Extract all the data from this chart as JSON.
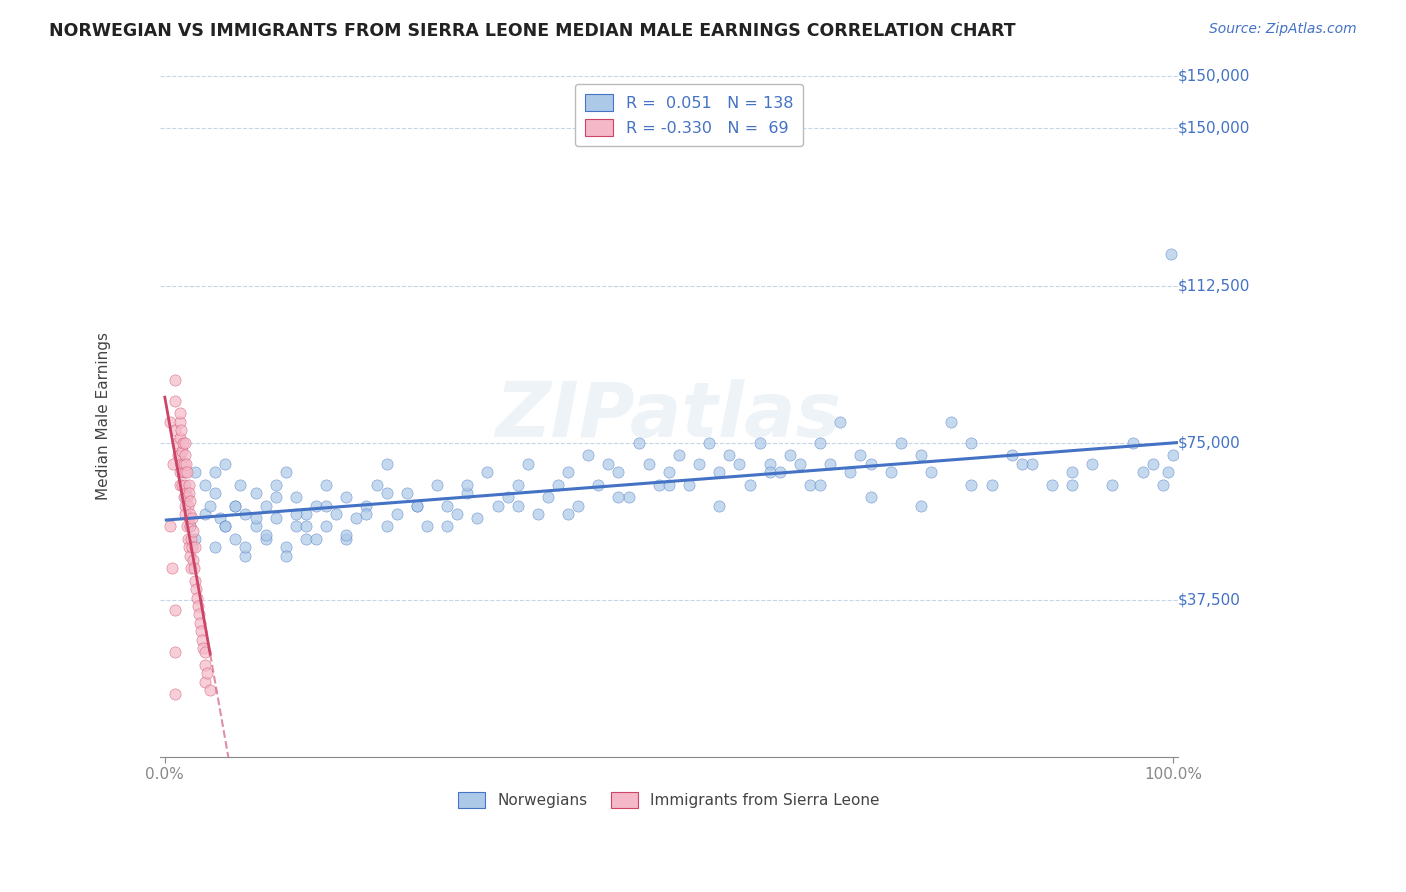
{
  "title": "NORWEGIAN VS IMMIGRANTS FROM SIERRA LEONE MEDIAN MALE EARNINGS CORRELATION CHART",
  "source": "Source: ZipAtlas.com",
  "ylabel": "Median Male Earnings",
  "ytick_labels": [
    "$37,500",
    "$75,000",
    "$112,500",
    "$150,000"
  ],
  "ytick_values": [
    37500,
    75000,
    112500,
    150000
  ],
  "ymin": 0,
  "ymax": 162500,
  "xmin": -0.005,
  "xmax": 1.005,
  "color_norwegian": "#adc9e8",
  "color_sierra_leone": "#f4b8c8",
  "color_norwegian_line": "#4472c4",
  "color_sierra_leone_line": "#cc4466",
  "color_axis_text": "#4472c4",
  "color_gridline": "#b8cce4",
  "color_trendline_nor": "#4472c4",
  "color_trendline_sl_solid": "#cc4466",
  "color_trendline_sl_dash": "#cc4466",
  "background_color": "#ffffff",
  "watermark": "ZIPatlas",
  "norwegians_x": [
    0.02,
    0.025,
    0.03,
    0.03,
    0.04,
    0.04,
    0.045,
    0.05,
    0.05,
    0.055,
    0.06,
    0.06,
    0.07,
    0.07,
    0.075,
    0.08,
    0.08,
    0.09,
    0.09,
    0.1,
    0.1,
    0.11,
    0.11,
    0.12,
    0.12,
    0.13,
    0.13,
    0.14,
    0.14,
    0.15,
    0.16,
    0.16,
    0.17,
    0.18,
    0.18,
    0.19,
    0.2,
    0.21,
    0.22,
    0.22,
    0.23,
    0.24,
    0.25,
    0.26,
    0.27,
    0.28,
    0.29,
    0.3,
    0.31,
    0.32,
    0.33,
    0.34,
    0.35,
    0.36,
    0.37,
    0.38,
    0.39,
    0.4,
    0.41,
    0.42,
    0.43,
    0.44,
    0.45,
    0.46,
    0.47,
    0.48,
    0.49,
    0.5,
    0.51,
    0.52,
    0.53,
    0.54,
    0.55,
    0.56,
    0.57,
    0.58,
    0.59,
    0.6,
    0.61,
    0.62,
    0.63,
    0.64,
    0.65,
    0.66,
    0.67,
    0.68,
    0.69,
    0.7,
    0.72,
    0.73,
    0.75,
    0.76,
    0.78,
    0.8,
    0.82,
    0.84,
    0.86,
    0.88,
    0.9,
    0.92,
    0.94,
    0.96,
    0.97,
    0.98,
    0.99,
    0.995,
    0.998,
    1.0,
    0.05,
    0.06,
    0.07,
    0.08,
    0.09,
    0.1,
    0.11,
    0.12,
    0.13,
    0.14,
    0.15,
    0.16,
    0.18,
    0.2,
    0.22,
    0.25,
    0.28,
    0.3,
    0.35,
    0.4,
    0.45,
    0.5,
    0.55,
    0.6,
    0.65,
    0.7,
    0.75,
    0.8,
    0.85,
    0.9
  ],
  "norwegians_y": [
    62000,
    55000,
    68000,
    52000,
    58000,
    65000,
    60000,
    50000,
    63000,
    57000,
    55000,
    70000,
    52000,
    60000,
    65000,
    58000,
    48000,
    55000,
    63000,
    52000,
    60000,
    57000,
    65000,
    50000,
    68000,
    55000,
    62000,
    58000,
    52000,
    60000,
    55000,
    65000,
    58000,
    52000,
    62000,
    57000,
    60000,
    65000,
    55000,
    70000,
    58000,
    63000,
    60000,
    55000,
    65000,
    60000,
    58000,
    63000,
    57000,
    68000,
    60000,
    62000,
    65000,
    70000,
    58000,
    62000,
    65000,
    68000,
    60000,
    72000,
    65000,
    70000,
    68000,
    62000,
    75000,
    70000,
    65000,
    68000,
    72000,
    65000,
    70000,
    75000,
    68000,
    72000,
    70000,
    65000,
    75000,
    70000,
    68000,
    72000,
    70000,
    65000,
    75000,
    70000,
    80000,
    68000,
    72000,
    70000,
    68000,
    75000,
    72000,
    68000,
    80000,
    75000,
    65000,
    72000,
    70000,
    65000,
    68000,
    70000,
    65000,
    75000,
    68000,
    70000,
    65000,
    68000,
    120000,
    72000,
    68000,
    55000,
    60000,
    50000,
    57000,
    53000,
    62000,
    48000,
    58000,
    55000,
    52000,
    60000,
    53000,
    58000,
    63000,
    60000,
    55000,
    65000,
    60000,
    58000,
    62000,
    65000,
    60000,
    68000,
    65000,
    62000,
    60000,
    65000,
    70000,
    65000
  ],
  "sierraLeone_x": [
    0.005,
    0.008,
    0.01,
    0.01,
    0.01,
    0.012,
    0.013,
    0.015,
    0.015,
    0.015,
    0.015,
    0.015,
    0.015,
    0.016,
    0.016,
    0.017,
    0.017,
    0.018,
    0.018,
    0.019,
    0.019,
    0.02,
    0.02,
    0.02,
    0.02,
    0.02,
    0.02,
    0.021,
    0.021,
    0.022,
    0.022,
    0.022,
    0.023,
    0.023,
    0.024,
    0.024,
    0.024,
    0.024,
    0.025,
    0.025,
    0.025,
    0.025,
    0.026,
    0.026,
    0.027,
    0.027,
    0.028,
    0.028,
    0.029,
    0.03,
    0.03,
    0.031,
    0.032,
    0.033,
    0.034,
    0.035,
    0.036,
    0.037,
    0.038,
    0.04,
    0.04,
    0.04,
    0.042,
    0.045,
    0.005,
    0.007,
    0.01,
    0.01,
    0.01
  ],
  "sierraLeone_y": [
    80000,
    70000,
    90000,
    78000,
    85000,
    75000,
    72000,
    80000,
    68000,
    76000,
    65000,
    82000,
    72000,
    70000,
    78000,
    65000,
    73000,
    68000,
    75000,
    62000,
    70000,
    65000,
    72000,
    60000,
    68000,
    75000,
    58000,
    63000,
    70000,
    55000,
    62000,
    68000,
    52000,
    60000,
    65000,
    50000,
    57000,
    63000,
    48000,
    55000,
    61000,
    58000,
    45000,
    52000,
    50000,
    57000,
    47000,
    54000,
    45000,
    42000,
    50000,
    40000,
    38000,
    36000,
    34000,
    32000,
    30000,
    28000,
    26000,
    22000,
    25000,
    18000,
    20000,
    16000,
    55000,
    45000,
    35000,
    25000,
    15000
  ]
}
